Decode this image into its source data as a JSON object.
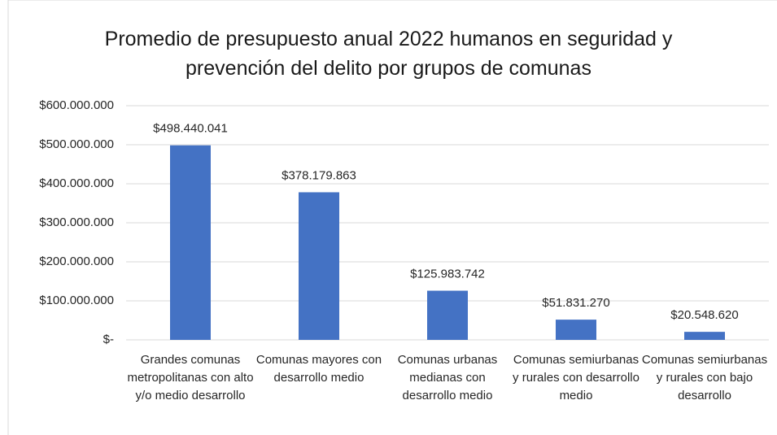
{
  "chart_data": {
    "type": "bar",
    "title": "Promedio de presupuesto anual 2022 humanos en seguridad y prevención del delito por grupos de comunas",
    "categories": [
      "Grandes comunas metropolitanas con alto y/o medio desarrollo",
      "Comunas mayores con desarrollo medio",
      "Comunas urbanas medianas con desarrollo medio",
      "Comunas semiurbanas y rurales con desarrollo medio",
      "Comunas semiurbanas y rurales con bajo desarrollo"
    ],
    "values": [
      498440041,
      378179863,
      125983742,
      51831270,
      20548620
    ],
    "value_labels": [
      "$498.440.041",
      "$378.179.863",
      "$125.983.742",
      "$51.831.270",
      "$20.548.620"
    ],
    "color": "#4472c4",
    "ylim": [
      0,
      600000000
    ],
    "yticks": [
      {
        "value": 0,
        "label": "$-"
      },
      {
        "value": 100000000,
        "label": "$100.000.000"
      },
      {
        "value": 200000000,
        "label": "$200.000.000"
      },
      {
        "value": 300000000,
        "label": "$300.000.000"
      },
      {
        "value": 400000000,
        "label": "$400.000.000"
      },
      {
        "value": 500000000,
        "label": "$500.000.000"
      },
      {
        "value": 600000000,
        "label": "$600.000.000"
      }
    ],
    "grid": true
  }
}
